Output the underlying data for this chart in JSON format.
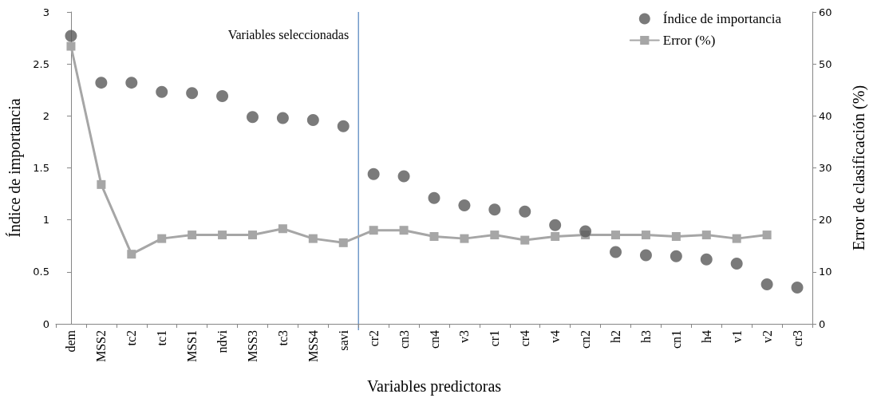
{
  "chart_data": {
    "type": "scatter",
    "xlabel": "Variables predictoras",
    "ylabel": "Índice de importancia",
    "y2label": "Error de clasificación (%)",
    "categories": [
      "dem",
      "MSS2",
      "tc2",
      "tc1",
      "MSS1",
      "ndvi",
      "MSS3",
      "tc3",
      "MSS4",
      "savi",
      "cr2",
      "cn3",
      "cn4",
      "v3",
      "cr1",
      "cr4",
      "v4",
      "cn2",
      "h2",
      "h3",
      "cn1",
      "h4",
      "v1",
      "v2",
      "cr3"
    ],
    "series": [
      {
        "name": "Índice de importancia",
        "marker": "circle",
        "color": "#595959",
        "values": [
          2.77,
          2.32,
          2.32,
          2.23,
          2.22,
          2.19,
          1.99,
          1.98,
          1.96,
          1.9,
          1.44,
          1.42,
          1.21,
          1.14,
          1.1,
          1.08,
          0.95,
          0.89,
          0.69,
          0.66,
          0.65,
          0.62,
          0.58,
          0.38,
          0.35
        ]
      },
      {
        "name": "Error (%)",
        "type": "line",
        "axis": "y2",
        "marker": "square",
        "color": "#a6a6a6",
        "values": [
          53.4,
          26.8,
          13.4,
          16.4,
          17.1,
          17.1,
          17.1,
          18.3,
          16.4,
          15.6,
          18.0,
          18.0,
          16.8,
          16.4,
          17.1,
          16.1,
          16.8,
          17.1,
          17.1,
          17.1,
          16.8,
          17.1,
          16.4,
          17.1,
          null
        ]
      }
    ],
    "ylim": [
      0,
      3
    ],
    "yticks": [
      0,
      0.5,
      1,
      1.5,
      2,
      2.5,
      3
    ],
    "y2lim": [
      0,
      60
    ],
    "y2ticks": [
      0,
      10,
      20,
      30,
      40,
      50,
      60
    ],
    "ref_lines": [
      {
        "axis": "x",
        "value": "savi",
        "label": "Variables seleccionadas",
        "color": "#4f81bd"
      }
    ],
    "legend": "top right",
    "grid": false
  }
}
